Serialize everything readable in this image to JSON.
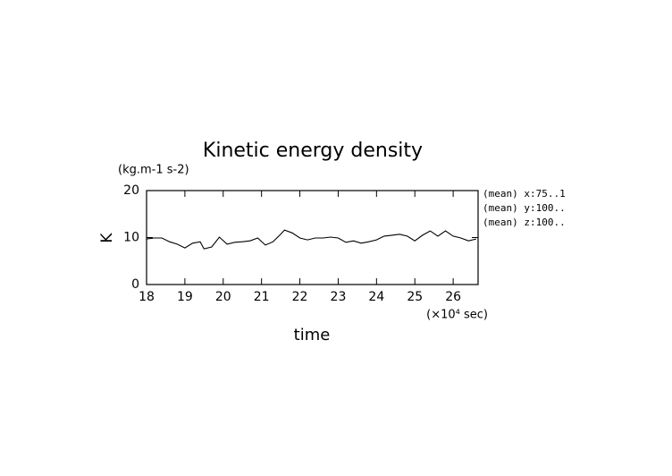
{
  "chart_data": {
    "type": "line",
    "title": "Kinetic energy density",
    "units": "(kg.m-1 s-2)",
    "y_label": "K",
    "x_label": "time",
    "x_units": "(×10⁴ sec)",
    "annotations": [
      "(mean) x:75..1",
      "(mean) y:100..",
      "(mean) z:100.."
    ],
    "xlim": [
      18,
      26.65
    ],
    "xticks": [
      18,
      19,
      20,
      21,
      22,
      23,
      24,
      25,
      26
    ],
    "ylim": [
      0,
      20
    ],
    "yticks": [
      0,
      10,
      20
    ],
    "series": [
      {
        "color": "#000000",
        "x": [
          18,
          18.2,
          18.4,
          18.6,
          18.8,
          19.0,
          19.2,
          19.4,
          19.5,
          19.7,
          19.9,
          20.1,
          20.3,
          20.5,
          20.7,
          20.9,
          21.1,
          21.3,
          21.5,
          21.6,
          21.8,
          22.0,
          22.2,
          22.4,
          22.6,
          22.8,
          23.0,
          23.2,
          23.4,
          23.6,
          23.8,
          24.0,
          24.2,
          24.4,
          24.6,
          24.8,
          25.0,
          25.2,
          25.4,
          25.6,
          25.8,
          26.0,
          26.2,
          26.4,
          26.6
        ],
        "values": [
          9.7,
          9.9,
          9.9,
          9.1,
          8.6,
          7.8,
          8.8,
          9.1,
          7.6,
          8.0,
          10.1,
          8.6,
          9.0,
          9.1,
          9.3,
          9.9,
          8.4,
          9.1,
          10.7,
          11.6,
          11.0,
          9.9,
          9.5,
          9.9,
          9.9,
          10.1,
          9.9,
          9.0,
          9.3,
          8.8,
          9.1,
          9.5,
          10.3,
          10.5,
          10.7,
          10.3,
          9.3,
          10.5,
          11.4,
          10.3,
          11.4,
          10.3,
          9.9,
          9.3,
          9.7
        ]
      }
    ]
  }
}
